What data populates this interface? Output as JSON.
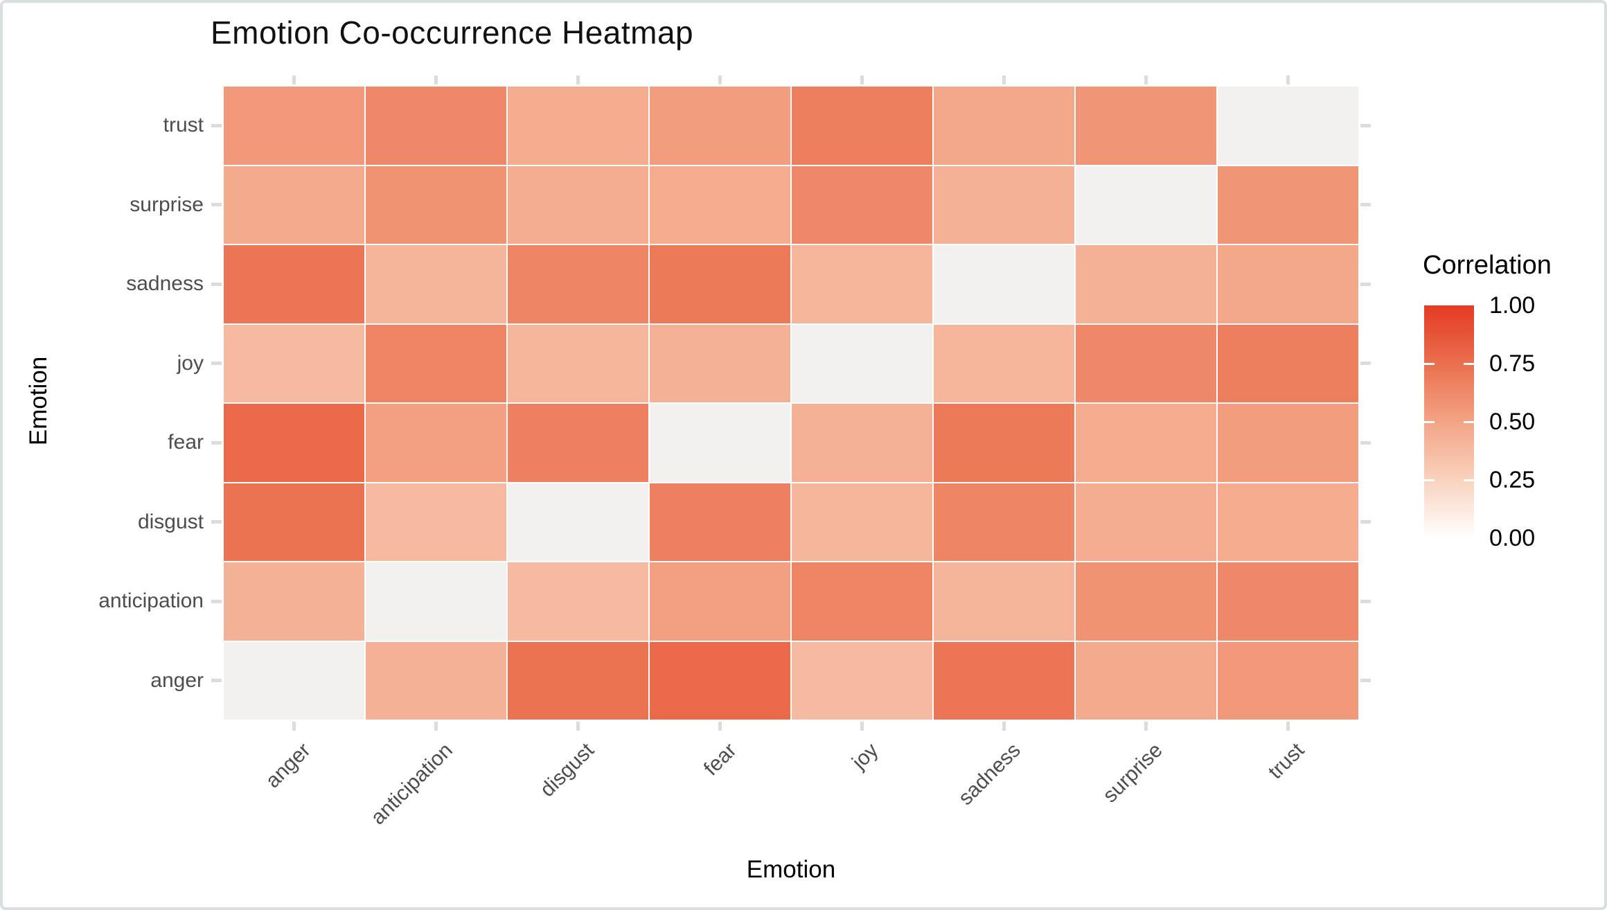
{
  "page": {
    "title": "Emotion Co-occurrence Heatmap"
  },
  "chart_data": {
    "type": "heatmap",
    "title": "Emotion Co-occurrence Heatmap",
    "xlabel": "Emotion",
    "ylabel": "Emotion",
    "x_categories": [
      "anger",
      "anticipation",
      "disgust",
      "fear",
      "joy",
      "sadness",
      "surprise",
      "trust"
    ],
    "y_categories_top_to_bottom": [
      "trust",
      "surprise",
      "sadness",
      "joy",
      "fear",
      "disgust",
      "anticipation",
      "anger"
    ],
    "rows": [
      {
        "label": "trust",
        "values": [
          0.55,
          0.63,
          0.46,
          0.53,
          0.68,
          0.48,
          0.57,
          null
        ]
      },
      {
        "label": "surprise",
        "values": [
          0.47,
          0.58,
          0.45,
          0.46,
          0.63,
          0.43,
          null,
          0.57
        ]
      },
      {
        "label": "sadness",
        "values": [
          0.72,
          0.41,
          0.64,
          0.7,
          0.4,
          null,
          0.43,
          0.48
        ]
      },
      {
        "label": "joy",
        "values": [
          0.38,
          0.65,
          0.4,
          0.43,
          null,
          0.4,
          0.63,
          0.68
        ]
      },
      {
        "label": "fear",
        "values": [
          0.78,
          0.52,
          0.67,
          null,
          0.43,
          0.7,
          0.46,
          0.53
        ]
      },
      {
        "label": "disgust",
        "values": [
          0.73,
          0.38,
          null,
          0.67,
          0.4,
          0.64,
          0.45,
          0.46
        ]
      },
      {
        "label": "anticipation",
        "values": [
          0.43,
          null,
          0.38,
          0.52,
          0.65,
          0.41,
          0.58,
          0.63
        ]
      },
      {
        "label": "anger",
        "values": [
          null,
          0.43,
          0.73,
          0.78,
          0.38,
          0.72,
          0.47,
          0.55
        ]
      }
    ],
    "value_range": [
      0.0,
      1.0
    ],
    "legend": {
      "title": "Correlation",
      "tick_labels": [
        "1.00",
        "0.75",
        "0.50",
        "0.25",
        "0.00"
      ],
      "tick_values": [
        1.0,
        0.75,
        0.5,
        0.25,
        0.0
      ],
      "position": "right",
      "gradient_stops": [
        {
          "value": 0.0,
          "color": "#FFFFFF"
        },
        {
          "value": 0.25,
          "color": "#F9D2BE"
        },
        {
          "value": 0.5,
          "color": "#F3A485"
        },
        {
          "value": 0.75,
          "color": "#EA6F4E"
        },
        {
          "value": 1.0,
          "color": "#E53A23"
        }
      ]
    },
    "colors": {
      "diagonal_cell": "#F2F1F0",
      "cell_border": "#FFFFFF",
      "axis_text": "#4D4D4D",
      "axis_tick": "#DCDCDC",
      "title_text": "#111111"
    },
    "grid": "off"
  }
}
